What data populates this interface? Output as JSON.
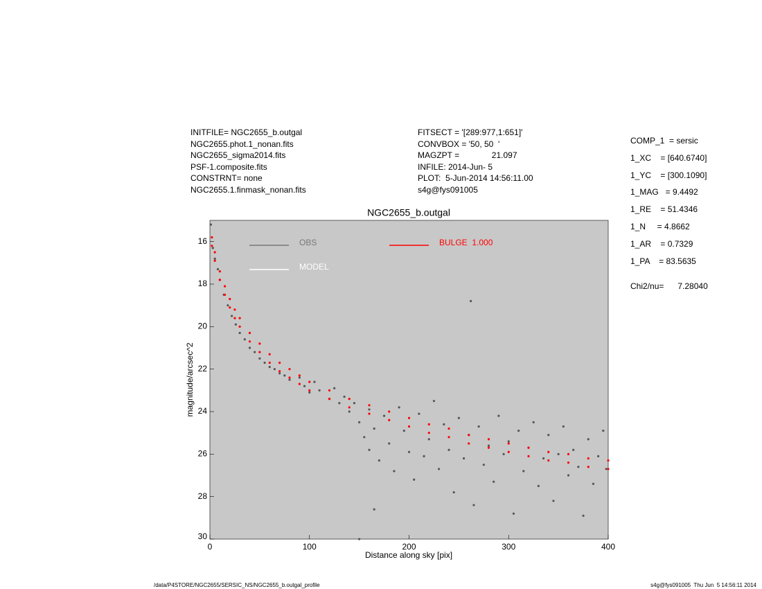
{
  "header": {
    "left": [
      "INITFILE= NGC2655_b.outgal",
      "NGC2655.phot.1_nonan.fits",
      "NGC2655_sigma2014.fits",
      "PSF-1.composite.fits",
      "CONSTRNT= none",
      "NGC2655.1.finmask_nonan.fits"
    ],
    "middle": [
      "FITSECT = '[289:977,1:651]'",
      "CONVBOX = '50, 50  '",
      "MAGZPT =              21.097",
      "INFILE: 2014-Jun- 5",
      "PLOT:  5-Jun-2014 14:56:11.00",
      "s4g@fys091005"
    ],
    "right": [
      "COMP_1  = sersic",
      "1_XC    = [640.6740]",
      "1_YC    = [300.1090]",
      "1_MAG   = 9.4492",
      "1_RE    = 51.4346",
      "1_N     = 4.8662",
      "1_AR    = 0.7329",
      "1_PA    = 83.5635",
      "Chi2/nu=      7.28040"
    ]
  },
  "footer": {
    "left": "/data/P4STORE/NGC2655/SERSIC_NS/NGC2655_b.outgal_profile",
    "right": "s4g@fys091005  Thu Jun  5 14:56:11 2014"
  },
  "chart_data": {
    "type": "scatter",
    "title": "NGC2655_b.outgal",
    "xlabel": "Distance along sky [pix]",
    "ylabel": "magnitude/arcsec^2",
    "xlim": [
      0,
      400
    ],
    "ylim": [
      30,
      15
    ],
    "xticks": [
      0,
      100,
      200,
      300,
      400
    ],
    "yticks": [
      16,
      18,
      20,
      22,
      24,
      26,
      28,
      30
    ],
    "background": "#c8c8c8",
    "series": [
      {
        "name": "OBS",
        "color": "#555555",
        "legend_color": "#777777",
        "x": [
          1,
          2,
          3,
          5,
          8,
          10,
          14,
          18,
          22,
          26,
          30,
          35,
          40,
          45,
          50,
          55,
          60,
          65,
          70,
          75,
          80,
          90,
          95,
          100,
          105,
          110,
          120,
          125,
          130,
          135,
          140,
          145,
          150,
          155,
          160,
          160,
          165,
          170,
          175,
          180,
          185,
          190,
          195,
          200,
          205,
          210,
          215,
          220,
          225,
          230,
          235,
          240,
          245,
          250,
          255,
          260,
          265,
          270,
          275,
          280,
          285,
          290,
          295,
          300,
          305,
          310,
          315,
          320,
          325,
          330,
          335,
          340,
          345,
          350,
          355,
          360,
          365,
          370,
          375,
          380,
          385,
          390,
          395,
          398,
          262,
          165,
          150
        ],
        "values": [
          15.2,
          15.8,
          16.3,
          16.8,
          17.3,
          17.8,
          18.5,
          19.0,
          19.5,
          19.9,
          20.3,
          20.6,
          21.0,
          21.2,
          21.5,
          21.7,
          21.9,
          22.0,
          22.2,
          22.3,
          22.5,
          22.4,
          22.8,
          23.1,
          22.6,
          23.0,
          23.4,
          22.9,
          23.6,
          23.3,
          24.0,
          23.6,
          24.5,
          25.2,
          25.8,
          23.9,
          24.8,
          26.3,
          24.2,
          25.5,
          26.8,
          23.8,
          24.9,
          25.9,
          27.2,
          24.1,
          26.1,
          25.3,
          23.5,
          26.7,
          24.6,
          25.8,
          27.8,
          24.3,
          26.2,
          25.1,
          28.4,
          24.7,
          26.5,
          25.6,
          27.3,
          24.2,
          26.0,
          25.4,
          28.8,
          24.9,
          26.8,
          25.7,
          24.5,
          27.5,
          26.2,
          25.1,
          28.2,
          26.0,
          24.7,
          27.0,
          25.8,
          26.6,
          28.9,
          25.3,
          27.4,
          26.1,
          24.9,
          26.7,
          18.8,
          28.6,
          30.0
        ]
      },
      {
        "name": "BULGE  1.000",
        "color": "#ff0000",
        "x": [
          2,
          2,
          5,
          5,
          10,
          10,
          15,
          15,
          20,
          20,
          25,
          25,
          30,
          30,
          40,
          40,
          50,
          50,
          60,
          60,
          70,
          70,
          80,
          80,
          90,
          90,
          100,
          100,
          120,
          120,
          140,
          140,
          160,
          160,
          180,
          180,
          200,
          200,
          220,
          220,
          240,
          240,
          260,
          260,
          280,
          280,
          300,
          300,
          320,
          320,
          340,
          340,
          360,
          360,
          380,
          380,
          400,
          400
        ],
        "values": [
          15.8,
          16.2,
          16.5,
          16.9,
          17.4,
          17.8,
          18.1,
          18.5,
          18.7,
          19.1,
          19.2,
          19.6,
          19.6,
          20.0,
          20.3,
          20.7,
          20.8,
          21.2,
          21.3,
          21.7,
          21.7,
          22.1,
          22.0,
          22.4,
          22.3,
          22.7,
          22.6,
          23.0,
          23.0,
          23.4,
          23.4,
          23.8,
          23.7,
          24.1,
          24.0,
          24.4,
          24.3,
          24.7,
          24.6,
          25.0,
          24.8,
          25.2,
          25.1,
          25.5,
          25.3,
          25.7,
          25.5,
          25.9,
          25.7,
          26.1,
          25.9,
          26.3,
          26.0,
          26.4,
          26.2,
          26.6,
          26.3,
          26.7
        ]
      },
      {
        "name": "MODEL",
        "color": "#ffffff",
        "x": [],
        "values": []
      }
    ]
  }
}
